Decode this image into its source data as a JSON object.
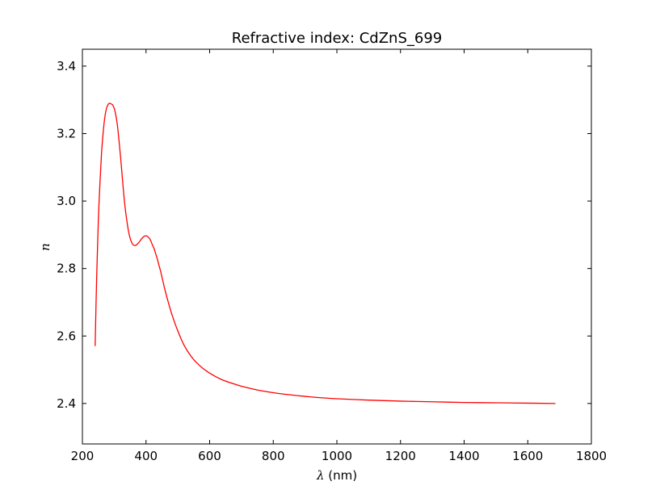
{
  "chart_data": {
    "type": "line",
    "title": "Refractive index: CdZnS_699",
    "xlabel_symbol": "λ",
    "xlabel_unit": " (nm)",
    "ylabel": "n",
    "xlim": [
      200,
      1800
    ],
    "ylim": [
      2.28,
      3.45
    ],
    "xticks": [
      200,
      400,
      600,
      800,
      1000,
      1200,
      1400,
      1600,
      1800
    ],
    "yticks": [
      2.4,
      2.6,
      2.8,
      3.0,
      3.2,
      3.4
    ],
    "ytick_labels": [
      "2.4",
      "2.6",
      "2.8",
      "3.0",
      "3.2",
      "3.4"
    ],
    "grid": false,
    "series": [
      {
        "color": "#ff0000",
        "x": [
          240,
          245,
          250,
          255,
          260,
          265,
          270,
          275,
          280,
          285,
          290,
          295,
          300,
          305,
          310,
          315,
          320,
          325,
          330,
          335,
          340,
          345,
          350,
          355,
          360,
          365,
          370,
          375,
          380,
          385,
          390,
          395,
          400,
          405,
          410,
          415,
          420,
          425,
          430,
          435,
          440,
          445,
          450,
          455,
          460,
          470,
          480,
          490,
          500,
          510,
          520,
          530,
          540,
          550,
          560,
          580,
          600,
          620,
          640,
          660,
          680,
          700,
          750,
          800,
          850,
          900,
          950,
          1000,
          1100,
          1200,
          1300,
          1400,
          1500,
          1600,
          1687
        ],
        "y": [
          2.57,
          2.78,
          2.94,
          3.05,
          3.14,
          3.2,
          3.245,
          3.272,
          3.285,
          3.29,
          3.288,
          3.285,
          3.275,
          3.255,
          3.225,
          3.18,
          3.13,
          3.075,
          3.02,
          2.975,
          2.94,
          2.91,
          2.89,
          2.877,
          2.87,
          2.868,
          2.87,
          2.875,
          2.88,
          2.887,
          2.892,
          2.896,
          2.897,
          2.895,
          2.89,
          2.882,
          2.87,
          2.86,
          2.845,
          2.83,
          2.812,
          2.795,
          2.775,
          2.755,
          2.735,
          2.7,
          2.668,
          2.64,
          2.615,
          2.592,
          2.572,
          2.556,
          2.542,
          2.53,
          2.52,
          2.503,
          2.49,
          2.479,
          2.47,
          2.463,
          2.457,
          2.451,
          2.44,
          2.432,
          2.426,
          2.421,
          2.417,
          2.414,
          2.41,
          2.407,
          2.405,
          2.403,
          2.402,
          2.401,
          2.4
        ]
      }
    ]
  }
}
